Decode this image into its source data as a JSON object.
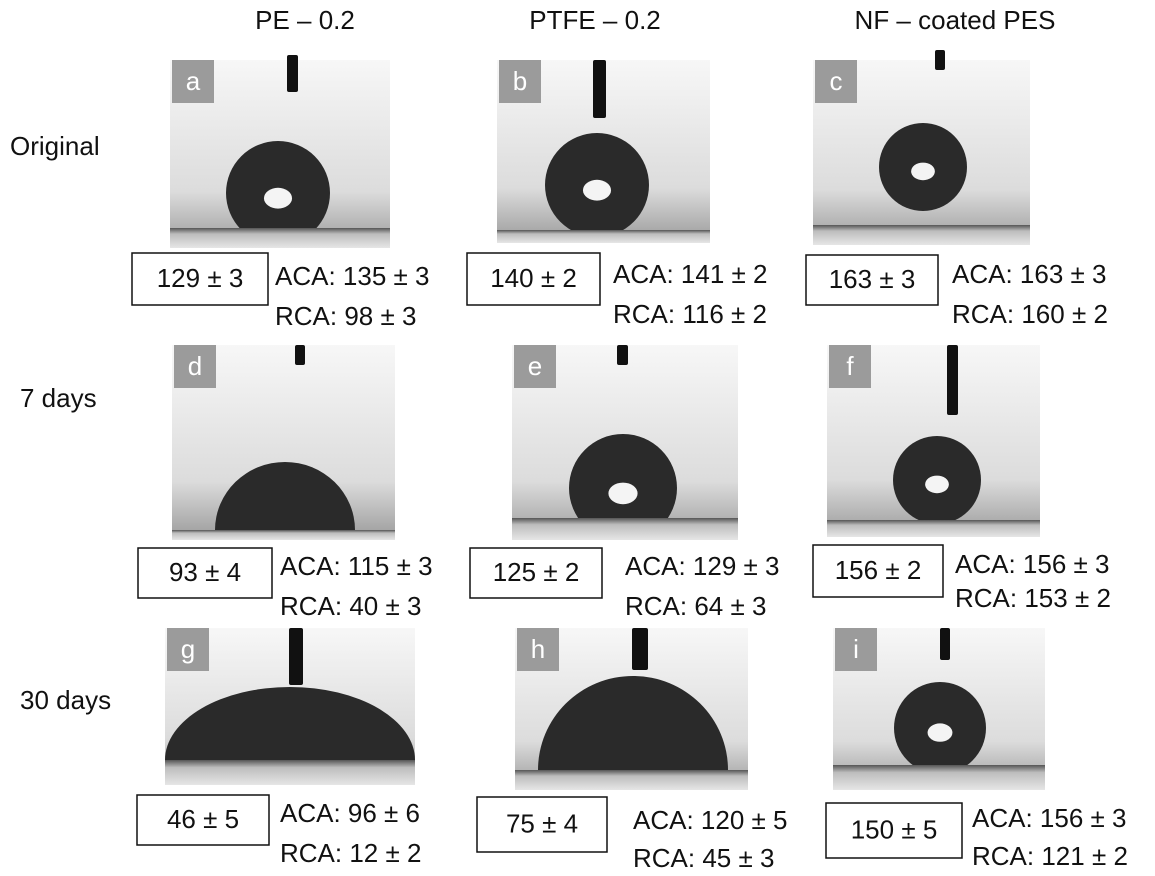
{
  "columns": [
    "PE – 0.2",
    "PTFE – 0.2",
    "NF – coated PES"
  ],
  "rows": [
    "Original",
    "7 days",
    "30 days"
  ],
  "panels": [
    {
      "letter": "a",
      "wca": "129 ± 3",
      "aca": "ACA: 135 ± 3",
      "rca": "RCA: 98 ± 3"
    },
    {
      "letter": "b",
      "wca": "140 ± 2",
      "aca": "ACA: 141 ± 2",
      "rca": "RCA: 116 ± 2"
    },
    {
      "letter": "c",
      "wca": "163 ± 3",
      "aca": "ACA: 163 ± 3",
      "rca": "RCA: 160 ± 2"
    },
    {
      "letter": "d",
      "wca": "93 ± 4",
      "aca": "ACA: 115 ± 3",
      "rca": "RCA: 40 ± 3"
    },
    {
      "letter": "e",
      "wca": "125 ± 2",
      "aca": "ACA: 129 ± 3",
      "rca": "RCA: 64 ± 3"
    },
    {
      "letter": "f",
      "wca": "156 ± 2",
      "aca": "ACA: 156 ± 3",
      "rca": "RCA: 153 ± 2"
    },
    {
      "letter": "g",
      "wca": "46 ± 5",
      "aca": "ACA: 96 ± 6",
      "rca": "RCA: 12 ± 2"
    },
    {
      "letter": "h",
      "wca": "75 ± 4",
      "aca": "ACA: 120 ± 5",
      "rca": "RCA: 45 ± 3"
    },
    {
      "letter": "i",
      "wca": "150 ± 5",
      "aca": "ACA: 156 ± 3",
      "rca": "RCA: 121 ± 2"
    }
  ]
}
